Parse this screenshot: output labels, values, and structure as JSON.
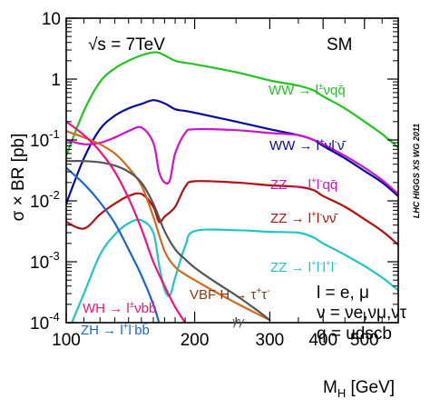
{
  "chart_data": {
    "type": "line",
    "xlabel": "M",
    "xlabel_sub": "H",
    "xlabel_unit": " [GeV]",
    "ylabel": "σ × BR [pb]",
    "xscale": "log",
    "yscale": "log",
    "xlim": [
      100,
      600
    ],
    "ylim": [
      0.0001,
      10
    ],
    "x_ticks": [
      {
        "value": 100,
        "label": "100"
      },
      {
        "value": 200,
        "label": "200"
      },
      {
        "value": 300,
        "label": "300"
      },
      {
        "value": 400,
        "label": "400"
      },
      {
        "value": 500,
        "label": "500"
      }
    ],
    "y_ticks": [
      {
        "value": 0.0001,
        "base": "10",
        "exp": "-4"
      },
      {
        "value": 0.001,
        "base": "10",
        "exp": "-3"
      },
      {
        "value": 0.01,
        "base": "10",
        "exp": "-2"
      },
      {
        "value": 0.1,
        "base": "10",
        "exp": "-1"
      },
      {
        "value": 1,
        "base": "1",
        "exp": ""
      },
      {
        "value": 10,
        "base": "10",
        "exp": ""
      }
    ],
    "annotations": {
      "energy": "√s = 7TeV",
      "model": "SM",
      "side_label": "LHC HIGGS XS WG 2011",
      "legend_l": "l = e, μ",
      "legend_nu": "ν = νe,νμ,ντ",
      "legend_q": "q = udscb"
    },
    "series": [
      {
        "name": "WW → l±νqq̄",
        "color": "#22c422",
        "points": [
          [
            100,
            0.055
          ],
          [
            110,
            0.3
          ],
          [
            120,
            0.9
          ],
          [
            130,
            1.5
          ],
          [
            140,
            2.0
          ],
          [
            150,
            2.45
          ],
          [
            160,
            2.75
          ],
          [
            165,
            2.7
          ],
          [
            170,
            2.45
          ],
          [
            180,
            2.0
          ],
          [
            190,
            1.85
          ],
          [
            200,
            1.75
          ],
          [
            250,
            1.3
          ],
          [
            300,
            0.95
          ],
          [
            350,
            0.78
          ],
          [
            380,
            0.65
          ],
          [
            400,
            0.52
          ],
          [
            450,
            0.33
          ],
          [
            500,
            0.2
          ],
          [
            550,
            0.125
          ],
          [
            600,
            0.075
          ]
        ]
      },
      {
        "name": "WW → l+νl-ν̄",
        "color": "#0a0aa0",
        "points": [
          [
            100,
            0.009
          ],
          [
            110,
            0.05
          ],
          [
            120,
            0.15
          ],
          [
            130,
            0.25
          ],
          [
            140,
            0.33
          ],
          [
            150,
            0.39
          ],
          [
            160,
            0.45
          ],
          [
            170,
            0.4
          ],
          [
            180,
            0.32
          ],
          [
            190,
            0.3
          ],
          [
            200,
            0.28
          ],
          [
            250,
            0.2
          ],
          [
            300,
            0.15
          ],
          [
            350,
            0.12
          ],
          [
            380,
            0.1
          ],
          [
            400,
            0.08
          ],
          [
            450,
            0.05
          ],
          [
            500,
            0.031
          ],
          [
            550,
            0.02
          ],
          [
            600,
            0.012
          ]
        ]
      },
      {
        "name": "ZZ → l+l-qq̄",
        "color": "#cc14cc",
        "points": [
          [
            100,
            0.1
          ],
          [
            110,
            0.085
          ],
          [
            120,
            0.09
          ],
          [
            130,
            0.11
          ],
          [
            140,
            0.14
          ],
          [
            150,
            0.16
          ],
          [
            160,
            0.09
          ],
          [
            165,
            0.03
          ],
          [
            170,
            0.02
          ],
          [
            175,
            0.022
          ],
          [
            180,
            0.06
          ],
          [
            190,
            0.13
          ],
          [
            200,
            0.15
          ],
          [
            250,
            0.145
          ],
          [
            300,
            0.13
          ],
          [
            350,
            0.12
          ],
          [
            380,
            0.1
          ],
          [
            400,
            0.085
          ],
          [
            450,
            0.055
          ],
          [
            500,
            0.035
          ],
          [
            550,
            0.022
          ],
          [
            600,
            0.013
          ]
        ]
      },
      {
        "name": "ZZ → l+l-νν̄",
        "color": "#b01010",
        "points": [
          [
            100,
            0.0045
          ],
          [
            110,
            0.0035
          ],
          [
            120,
            0.006
          ],
          [
            130,
            0.009
          ],
          [
            140,
            0.012
          ],
          [
            150,
            0.013
          ],
          [
            160,
            0.008
          ],
          [
            165,
            0.0045
          ],
          [
            170,
            0.0055
          ],
          [
            180,
            0.008
          ],
          [
            190,
            0.017
          ],
          [
            200,
            0.021
          ],
          [
            250,
            0.02
          ],
          [
            300,
            0.018
          ],
          [
            350,
            0.017
          ],
          [
            380,
            0.015
          ],
          [
            400,
            0.012
          ],
          [
            450,
            0.008
          ],
          [
            500,
            0.005
          ],
          [
            550,
            0.0032
          ],
          [
            600,
            0.0019
          ]
        ]
      },
      {
        "name": "ZZ → l+l-l+l-",
        "color": "#22c4c4",
        "points": [
          [
            100,
            6e-05
          ],
          [
            110,
            0.0003
          ],
          [
            120,
            0.0013
          ],
          [
            130,
            0.0028
          ],
          [
            140,
            0.0043
          ],
          [
            150,
            0.0048
          ],
          [
            160,
            0.003
          ],
          [
            165,
            0.0009
          ],
          [
            170,
            0.00035
          ],
          [
            175,
            0.00028
          ],
          [
            180,
            0.00055
          ],
          [
            190,
            0.0018
          ],
          [
            200,
            0.0032
          ],
          [
            250,
            0.0033
          ],
          [
            300,
            0.0031
          ],
          [
            350,
            0.003
          ],
          [
            380,
            0.0025
          ],
          [
            400,
            0.002
          ],
          [
            450,
            0.0013
          ],
          [
            500,
            0.00085
          ],
          [
            550,
            0.00055
          ],
          [
            600,
            0.00034
          ]
        ]
      },
      {
        "name": "VBF H → τ+τ-",
        "color": "#d2691e",
        "points": [
          [
            100,
            0.14
          ],
          [
            110,
            0.11
          ],
          [
            120,
            0.085
          ],
          [
            130,
            0.06
          ],
          [
            140,
            0.035
          ],
          [
            150,
            0.018
          ],
          [
            160,
            0.0055
          ],
          [
            170,
            0.0015
          ],
          [
            180,
            0.00082
          ],
          [
            190,
            0.00062
          ],
          [
            200,
            0.0005
          ],
          [
            220,
            0.00034
          ],
          [
            250,
            0.00021
          ],
          [
            280,
            0.00014
          ],
          [
            300,
            0.00011
          ]
        ]
      },
      {
        "name": "γγ",
        "color": "#555555",
        "points": [
          [
            100,
            0.045
          ],
          [
            110,
            0.045
          ],
          [
            120,
            0.043
          ],
          [
            130,
            0.038
          ],
          [
            140,
            0.03
          ],
          [
            150,
            0.02
          ],
          [
            160,
            0.009
          ],
          [
            170,
            0.0032
          ],
          [
            180,
            0.0016
          ],
          [
            190,
            0.0011
          ],
          [
            200,
            0.0008
          ],
          [
            220,
            0.0005
          ],
          [
            250,
            0.00028
          ],
          [
            280,
            0.00016
          ],
          [
            300,
            0.00011
          ]
        ]
      },
      {
        "name": "WH → l±νbb̄",
        "color": "#ee1480",
        "points": [
          [
            100,
            0.2
          ],
          [
            110,
            0.12
          ],
          [
            120,
            0.065
          ],
          [
            130,
            0.03
          ],
          [
            140,
            0.011
          ],
          [
            150,
            0.0035
          ],
          [
            160,
            0.001
          ],
          [
            170,
            0.0004
          ],
          [
            180,
            0.00018
          ],
          [
            190,
            0.0001
          ]
        ]
      },
      {
        "name": "ZH → l+l-bb̄",
        "color": "#1a66cc",
        "points": [
          [
            100,
            0.035
          ],
          [
            110,
            0.019
          ],
          [
            120,
            0.0095
          ],
          [
            130,
            0.0043
          ],
          [
            140,
            0.0016
          ],
          [
            150,
            0.0006
          ],
          [
            160,
            0.0002
          ],
          [
            165,
            0.0001
          ]
        ]
      }
    ]
  },
  "series_labels": {
    "ww_qq": {
      "main": "WW → l",
      "sup": "±",
      "tail": "νqq̄"
    },
    "ww_lnu": {
      "main": "WW → l",
      "sup": "+",
      "mid": "νl",
      "sup2": "-",
      "tail": "ν̄"
    },
    "zz_qq": {
      "main": "ZZ → l",
      "sup": "+",
      "mid": "l",
      "sup2": "-",
      "tail": "qq̄"
    },
    "zz_nu": {
      "main": "ZZ → l",
      "sup": "+",
      "mid": "l",
      "sup2": "-",
      "tail": "νν̄"
    },
    "zz_4l": {
      "main": "ZZ → l",
      "sup": "+",
      "mid": "l",
      "sup2": "-",
      "mid2": "l",
      "sup3": "+",
      "mid3": "l",
      "sup4": "-"
    },
    "vbf": {
      "main": "VBF H → τ",
      "sup": "+",
      "mid": "τ",
      "sup2": "-"
    },
    "gg": {
      "main": "γγ"
    },
    "wh": {
      "main": "WH → l",
      "sup": "±",
      "tail": "νbb̄"
    },
    "zh": {
      "main": "ZH → l",
      "sup": "+",
      "mid": "l",
      "sup2": "-",
      "tail": "bb̄"
    }
  }
}
